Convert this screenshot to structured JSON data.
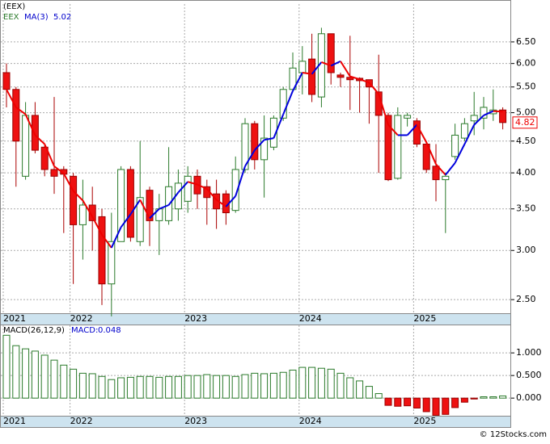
{
  "chart_data": [
    {
      "type": "candlestick",
      "title": "(EEX)",
      "ticker": "EEX",
      "categories": [
        "2021",
        null,
        null,
        null,
        null,
        null,
        null,
        "2022",
        null,
        null,
        null,
        null,
        null,
        null,
        null,
        null,
        null,
        null,
        null,
        "2023",
        null,
        null,
        null,
        null,
        null,
        null,
        null,
        null,
        null,
        null,
        null,
        "2024",
        null,
        null,
        null,
        null,
        null,
        null,
        null,
        null,
        null,
        null,
        null,
        "2025",
        null,
        null,
        null,
        null,
        null,
        null,
        null,
        null,
        null
      ],
      "open": [
        5.8,
        5.45,
        3.95,
        4.95,
        4.4,
        4.05,
        4.05,
        3.95,
        3.3,
        3.55,
        3.4,
        2.65,
        3.1,
        4.05,
        3.1,
        3.75,
        3.35,
        3.35,
        3.5,
        3.6,
        3.95,
        3.8,
        3.7,
        3.7,
        3.48,
        4.05,
        4.8,
        4.2,
        4.4,
        4.9,
        5.45,
        5.8,
        6.1,
        5.3,
        6.7,
        5.75,
        5.7,
        5.68,
        5.65,
        5.4,
        4.95,
        3.92,
        4.9,
        4.85,
        4.45,
        4.1,
        3.9,
        4.25,
        4.55,
        4.85,
        4.9,
        4.98,
        5.05
      ],
      "high": [
        6.0,
        5.5,
        5.2,
        5.2,
        4.45,
        5.3,
        4.1,
        4.0,
        3.9,
        3.8,
        3.5,
        3.45,
        4.1,
        4.1,
        4.5,
        3.8,
        3.7,
        4.4,
        4.05,
        4.1,
        4.05,
        3.9,
        3.9,
        3.75,
        4.25,
        4.9,
        4.85,
        4.95,
        4.95,
        5.5,
        6.25,
        6.4,
        6.7,
        6.85,
        6.7,
        5.8,
        6.65,
        5.7,
        5.65,
        6.2,
        5.0,
        5.1,
        5.0,
        4.9,
        4.5,
        4.45,
        4.0,
        4.8,
        4.9,
        5.4,
        5.3,
        5.45,
        5.1
      ],
      "low": [
        5.1,
        3.8,
        3.9,
        4.3,
        3.95,
        3.7,
        3.2,
        2.65,
        2.9,
        3.0,
        2.45,
        2.35,
        3.1,
        3.1,
        3.05,
        3.05,
        2.95,
        3.3,
        3.35,
        3.45,
        3.5,
        3.3,
        3.25,
        3.3,
        3.45,
        4.0,
        4.05,
        3.65,
        4.35,
        4.85,
        5.4,
        5.35,
        5.2,
        5.1,
        5.55,
        5.5,
        5.05,
        5.0,
        4.8,
        4.0,
        3.88,
        3.9,
        4.75,
        4.4,
        4.0,
        3.6,
        3.2,
        4.2,
        4.5,
        4.6,
        4.7,
        4.85,
        4.7
      ],
      "close": [
        5.45,
        4.5,
        4.95,
        4.35,
        4.05,
        3.95,
        3.98,
        3.3,
        3.55,
        3.35,
        2.65,
        3.1,
        4.05,
        3.15,
        3.65,
        3.35,
        3.5,
        3.8,
        3.85,
        3.95,
        3.7,
        3.65,
        3.5,
        3.45,
        4.05,
        4.8,
        4.2,
        4.55,
        4.9,
        5.45,
        5.9,
        6.05,
        5.35,
        6.7,
        5.8,
        5.7,
        5.65,
        5.63,
        5.5,
        4.95,
        3.9,
        4.95,
        4.95,
        4.45,
        4.05,
        3.9,
        3.95,
        4.6,
        4.8,
        4.95,
        5.1,
        5.05,
        4.82
      ],
      "series": [
        {
          "name": "MA(3)",
          "values": [
            5.45,
            5.1,
            4.97,
            4.6,
            4.45,
            4.1,
            3.99,
            3.74,
            3.61,
            3.4,
            3.18,
            3.03,
            3.27,
            3.43,
            3.62,
            3.38,
            3.5,
            3.55,
            3.72,
            3.87,
            3.83,
            3.77,
            3.62,
            3.53,
            3.67,
            4.1,
            4.35,
            4.52,
            4.55,
            4.97,
            5.42,
            5.8,
            5.77,
            6.03,
            5.95,
            6.05,
            5.72,
            5.66,
            5.59,
            5.36,
            4.78,
            4.6,
            4.6,
            4.78,
            4.48,
            4.13,
            3.97,
            4.15,
            4.45,
            4.78,
            4.95,
            5.03,
            5.02
          ]
        }
      ],
      "ylim": [
        2.37,
        7.48
      ],
      "log_scale": true,
      "grid": true,
      "yticks": [
        {
          "value": 2.5,
          "label": "2.50"
        },
        {
          "value": 3,
          "label": "3.00"
        },
        {
          "value": 3.5,
          "label": "3.50"
        },
        {
          "value": 4,
          "label": "4.00"
        },
        {
          "value": 4.5,
          "label": "4.50"
        },
        {
          "value": 5,
          "label": "5.00"
        },
        {
          "value": 5.5,
          "label": "5.50"
        },
        {
          "value": 6,
          "label": "6.00"
        },
        {
          "value": 6.5,
          "label": "6.50"
        }
      ]
    },
    {
      "type": "bar",
      "name": "MACD(26,12,9)",
      "value_prefix": "MACD:",
      "categories": [
        "2021",
        null,
        null,
        null,
        null,
        null,
        null,
        "2022",
        null,
        null,
        null,
        null,
        null,
        null,
        null,
        null,
        null,
        null,
        null,
        "2023",
        null,
        null,
        null,
        null,
        null,
        null,
        null,
        null,
        null,
        null,
        null,
        "2024",
        null,
        null,
        null,
        null,
        null,
        null,
        null,
        null,
        null,
        null,
        null,
        "2025",
        null,
        null,
        null,
        null,
        null,
        null,
        null,
        null,
        null
      ],
      "values": [
        1.39,
        1.16,
        1.09,
        1.04,
        0.95,
        0.84,
        0.73,
        0.64,
        0.55,
        0.54,
        0.48,
        0.41,
        0.45,
        0.46,
        0.48,
        0.48,
        0.46,
        0.48,
        0.48,
        0.5,
        0.5,
        0.52,
        0.5,
        0.5,
        0.48,
        0.52,
        0.55,
        0.54,
        0.55,
        0.57,
        0.62,
        0.68,
        0.68,
        0.66,
        0.64,
        0.55,
        0.45,
        0.38,
        0.26,
        0.1,
        -0.16,
        -0.18,
        -0.17,
        -0.22,
        -0.3,
        -0.38,
        -0.36,
        -0.21,
        -0.09,
        -0.02,
        0.03,
        0.03,
        0.048
      ],
      "ylim": [
        -0.39,
        1.61
      ],
      "grid": true,
      "yticks": [
        {
          "value": 0,
          "label": "0.000"
        },
        {
          "value": 0.5,
          "label": "0.500"
        },
        {
          "value": 1,
          "label": "1.000"
        }
      ]
    }
  ],
  "footer": "© 12Stocks.com"
}
